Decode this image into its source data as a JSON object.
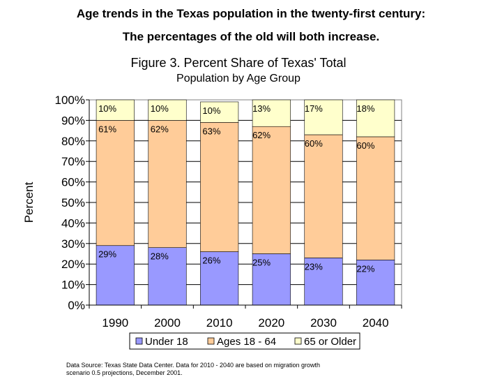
{
  "slide": {
    "title_line1": "Age trends in the Texas population in the twenty-first century:",
    "title_line2": "The percentages of the old will both increase."
  },
  "chart_data": {
    "type": "bar",
    "stacked": true,
    "title_line1": "Figure 3. Percent Share of Texas' Total",
    "title_line2": "Population by Age Group",
    "ylabel": "Percent",
    "xlabel": "",
    "ylim": [
      0,
      100
    ],
    "y_ticks": [
      "0%",
      "10%",
      "20%",
      "30%",
      "40%",
      "50%",
      "60%",
      "70%",
      "80%",
      "90%",
      "100%"
    ],
    "grid": true,
    "legend_position": "bottom",
    "categories": [
      "1990",
      "2000",
      "2010",
      "2020",
      "2030",
      "2040"
    ],
    "series": [
      {
        "name": "Under 18",
        "color": "#9999ff",
        "values": [
          29,
          28,
          26,
          25,
          23,
          22
        ],
        "labels": [
          "29%",
          "28%",
          "26%",
          "25%",
          "23%",
          "22%"
        ]
      },
      {
        "name": "Ages 18 - 64",
        "color": "#ffcc99",
        "values": [
          61,
          62,
          63,
          62,
          60,
          60
        ],
        "labels": [
          "61%",
          "62%",
          "63%",
          "62%",
          "60%",
          "60%"
        ]
      },
      {
        "name": "65 or Older",
        "color": "#ffffcc",
        "values": [
          10,
          10,
          10,
          13,
          17,
          18
        ],
        "labels": [
          "10%",
          "10%",
          "10%",
          "13%",
          "17%",
          "18%"
        ]
      }
    ]
  },
  "source": {
    "line1": "Data Source: Texas State Data Center. Data for 2010 - 2040 are based on migration growth",
    "line2": "scenario 0.5 projections, December 2001."
  }
}
